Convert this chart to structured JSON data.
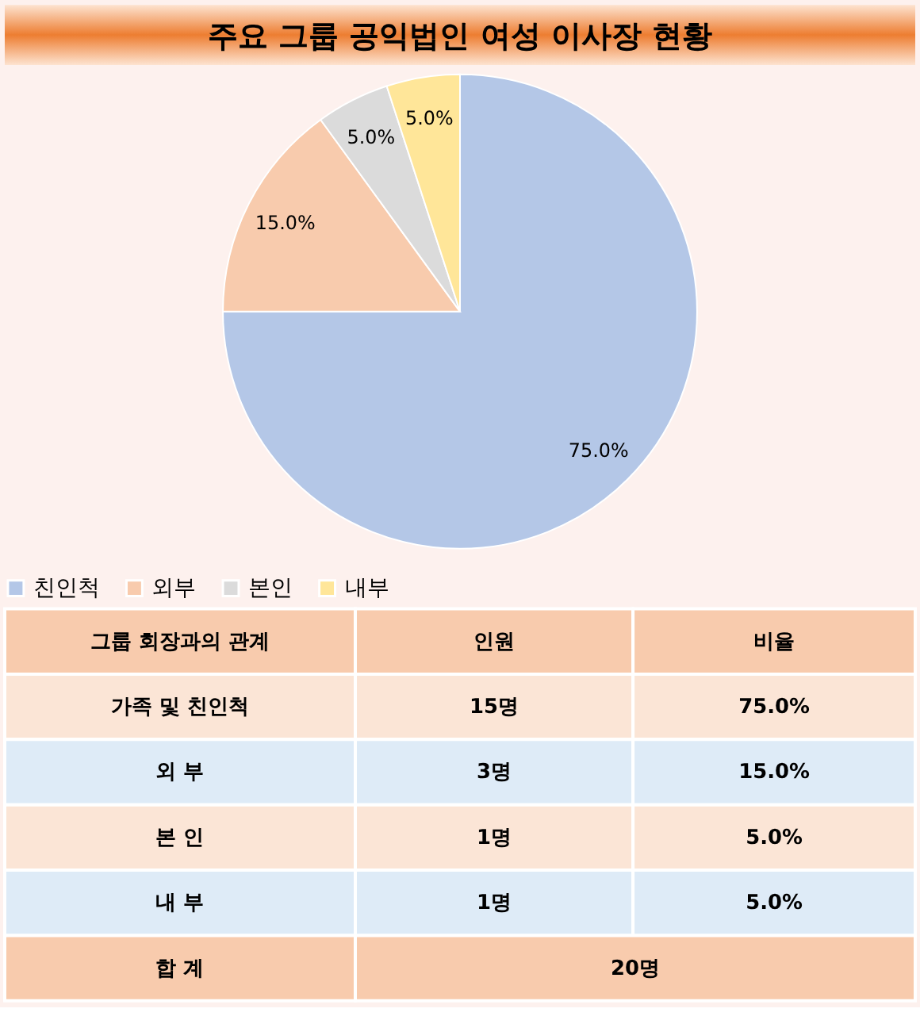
{
  "chart_data": [
    {
      "type": "pie",
      "title": "주요 그룹 공익법인 여성 이사장 현황",
      "categories": [
        "친인척",
        "외부",
        "본인",
        "내부"
      ],
      "values": [
        75,
        15,
        5,
        5
      ],
      "colors": [
        "#b4c7e7",
        "#f8cbad",
        "#dbdbdb",
        "#ffe699"
      ],
      "value_labels": [
        "75.0%",
        "15.0%",
        "5.0%",
        "5.0%"
      ],
      "legend": "bottom"
    },
    {
      "type": "other",
      "xlabel": "그룹 회장과의 관계",
      "categories": [
        "가족 및 친인척",
        "외 부",
        "본 인",
        "내 부",
        "합 계"
      ],
      "colors": [
        "#fbe5d6",
        "#deebf7",
        "#fbe5d6",
        "#deebf7",
        "#f8cbad"
      ],
      "series": [
        {
          "name": "인원",
          "values": [
            15,
            3,
            1,
            1,
            20
          ],
          "colors": [
            "#fbe5d6",
            "#deebf7",
            "#fbe5d6",
            "#deebf7",
            "#f8cbad"
          ],
          "value_labels": [
            "15명",
            "3명",
            "1명",
            "1명",
            "20명"
          ]
        },
        {
          "name": "비율",
          "values": [
            75,
            15,
            5,
            5,
            null
          ],
          "colors": [
            "#fbe5d6",
            "#deebf7",
            "#fbe5d6",
            "#deebf7",
            null
          ],
          "value_labels": [
            "75.0%",
            "15.0%",
            "5.0%",
            "5.0%",
            null
          ]
        }
      ]
    }
  ]
}
